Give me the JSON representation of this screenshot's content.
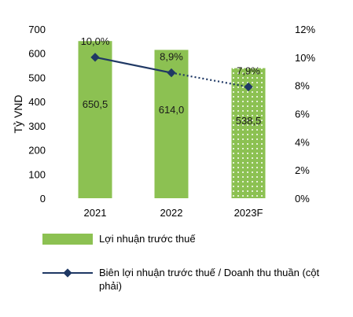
{
  "chart_data": {
    "type": "bar",
    "categories": [
      "2021",
      "2022",
      "2023F"
    ],
    "ylabel": "Tỷ VND",
    "ylim": [
      0,
      700
    ],
    "yticks": [
      "0",
      "100",
      "200",
      "300",
      "400",
      "500",
      "600",
      "700"
    ],
    "y2lim": [
      0,
      12
    ],
    "y2ticks": [
      "0%",
      "2%",
      "4%",
      "6%",
      "8%",
      "10%",
      "12%"
    ],
    "grid": false,
    "legend_position": "bottom",
    "series": [
      {
        "name": "Lợi nhuận trước thuế",
        "type": "bar",
        "axis": "left",
        "values": [
          650.5,
          614.0,
          538.5
        ],
        "labels": [
          "650,5",
          "614,0",
          "538,5"
        ],
        "color": "#8cc152",
        "forecast_pattern": "dotted"
      },
      {
        "name": "Biên lợi nhuận trước thuế / Doanh thu thuần (cột phải)",
        "type": "line",
        "axis": "right",
        "values": [
          10.0,
          8.9,
          7.9
        ],
        "labels": [
          "10,0%",
          "8,9%",
          "7,9%"
        ],
        "color": "#1f3864",
        "forecast_line": "dotted"
      }
    ]
  }
}
